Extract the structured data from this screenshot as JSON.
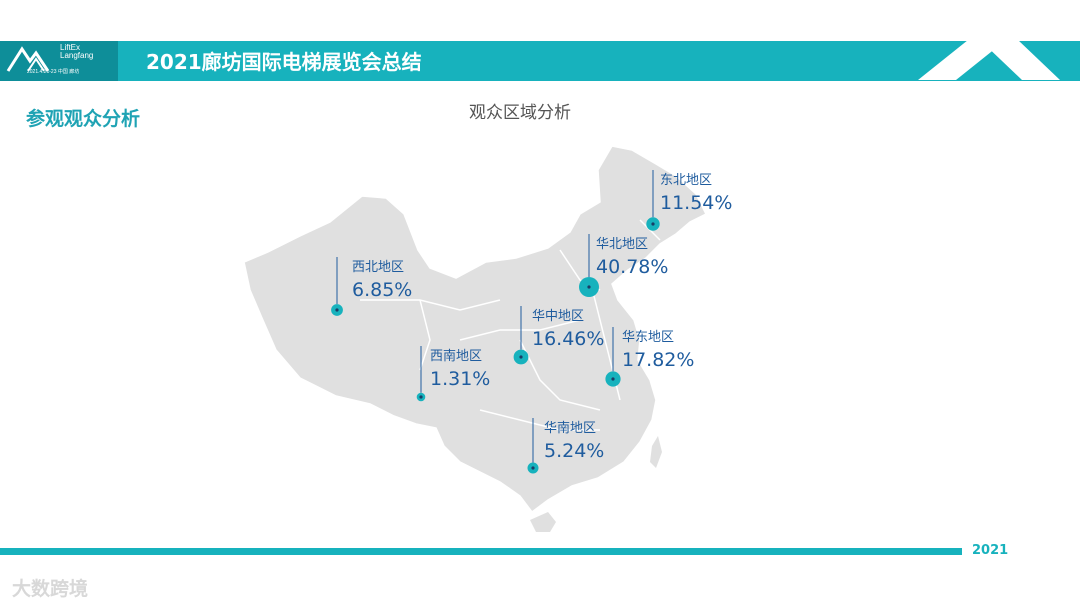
{
  "header": {
    "logo_text_line1": "LiftEx",
    "logo_text_line2": "Langfang",
    "logo_subtext": "2021.4.21-23 中国 廊坊",
    "title": "2021廊坊国际电梯展览会总结"
  },
  "section_title": "参观观众分析",
  "footer": {
    "year": "2021"
  },
  "watermark": "大数跨境",
  "colors": {
    "accent": "#17b2bd",
    "accent_dark": "#0e8e99",
    "map_fill": "#e0e0e0",
    "marker": "#17b2bd",
    "label": "#1f5c9e"
  },
  "chart_data": {
    "type": "map",
    "title": "观众区域分析",
    "categories": [
      "东北地区",
      "华北地区",
      "西北地区",
      "华中地区",
      "华东地区",
      "西南地区",
      "华南地区"
    ],
    "values": [
      11.54,
      40.78,
      6.85,
      16.46,
      17.82,
      1.31,
      5.24
    ],
    "value_labels": [
      "11.54%",
      "40.78%",
      "6.85%",
      "16.46%",
      "17.82%",
      "1.31%",
      "5.24%"
    ],
    "unit": "%"
  }
}
